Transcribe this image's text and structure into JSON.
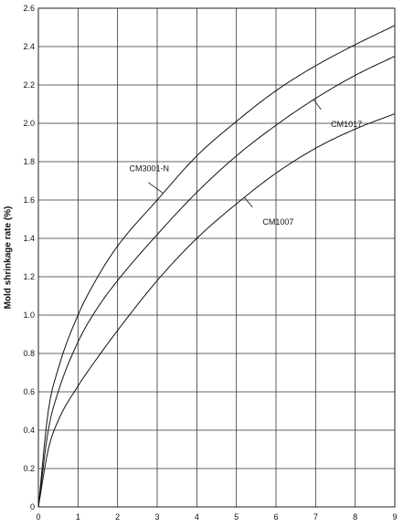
{
  "chart_data": {
    "type": "line",
    "title": "",
    "xlabel": "",
    "ylabel": "Mold shrinkage rate (%)",
    "xlim": [
      0,
      9
    ],
    "ylim": [
      0,
      2.6
    ],
    "grid": true,
    "x_ticks": [
      "0",
      "1",
      "2",
      "3",
      "4",
      "5",
      "6",
      "7",
      "8",
      "9"
    ],
    "y_ticks": [
      "0",
      "0.2",
      "0.4",
      "0.6",
      "0.8",
      "1.0",
      "1.2",
      "1.4",
      "1.6",
      "1.8",
      "2.0",
      "2.2",
      "2.4",
      "2.6"
    ],
    "series": [
      {
        "name": "CM3001-N",
        "x": [
          0,
          0.25,
          0.5,
          1,
          1.5,
          2,
          3,
          4,
          5,
          6,
          7,
          8,
          9
        ],
        "values": [
          0,
          0.5,
          0.72,
          1.0,
          1.2,
          1.36,
          1.6,
          1.83,
          2.01,
          2.17,
          2.3,
          2.41,
          2.51
        ]
      },
      {
        "name": "CM1017",
        "x": [
          0,
          0.25,
          0.5,
          1,
          1.5,
          2,
          3,
          4,
          5,
          6,
          7,
          8,
          9
        ],
        "values": [
          0,
          0.4,
          0.6,
          0.86,
          1.04,
          1.18,
          1.42,
          1.64,
          1.83,
          1.99,
          2.13,
          2.25,
          2.35
        ]
      },
      {
        "name": "CM1007",
        "x": [
          0,
          0.25,
          0.5,
          1,
          1.5,
          2,
          3,
          4,
          5,
          6,
          7,
          8,
          9
        ],
        "values": [
          0,
          0.3,
          0.45,
          0.63,
          0.78,
          0.92,
          1.18,
          1.4,
          1.58,
          1.74,
          1.87,
          1.97,
          2.05
        ]
      }
    ],
    "annotations": [
      {
        "text": "CM3001-N",
        "series": "CM3001-N",
        "at_x": 3.15
      },
      {
        "text": "CM1017",
        "series": "CM1017",
        "at_x": 6.95
      },
      {
        "text": "CM1007",
        "series": "CM1007",
        "at_x": 5.2
      }
    ]
  }
}
